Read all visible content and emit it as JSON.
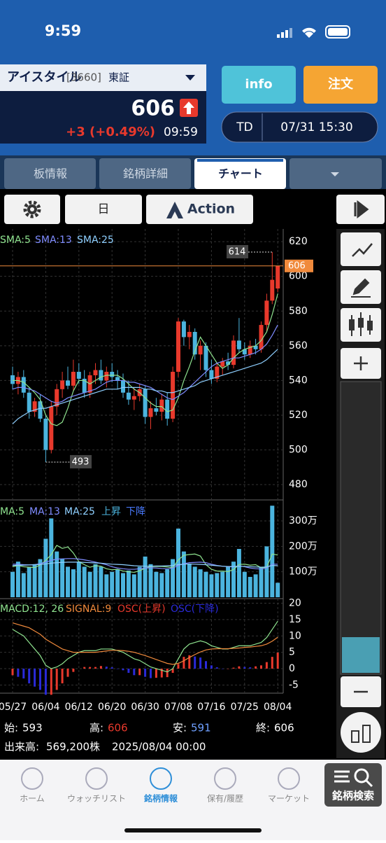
{
  "status_bar": {
    "time": "9:59"
  },
  "header": {
    "name": "アイスタイル",
    "code": "[3660]",
    "market": "東証",
    "change": "+3 (+0.49%)",
    "time": "09:59",
    "info": "info",
    "order": "注文",
    "td": "TD",
    "datetime": "07/31 15:30"
  },
  "tabs": [
    "板情報",
    "銘柄詳細",
    "チャート"
  ],
  "toolbar": {
    "period": "日",
    "action": "Action"
  },
  "legend": {
    "price": [
      "SMA:5",
      "SMA:13",
      "SMA:25"
    ],
    "volume": [
      "MA:5",
      "MA:13",
      "MA:25",
      "上昇",
      "下降"
    ],
    "macd": [
      "MACD:12, 26",
      "SIGNAL:9",
      "OSC(上昇)",
      "OSC(下降)"
    ]
  },
  "info": {
    "open": "始:",
    "high": "高:",
    "low": "安:",
    "close": "終:",
    "volume_prefix": "出来高:",
    "volume": "569,200",
    "volume_unit": "株",
    "datetime": "2025/08/04 00:00"
  },
  "nav": [
    "ホーム",
    "ウォッチリスト",
    "銘柄情報",
    "保有/履歴",
    "マーケット",
    "銘柄検索"
  ],
  "chart_data": {
    "type": "candlestick",
    "categories": [
      "05/27",
      null,
      null,
      null,
      null,
      null,
      "06/04",
      null,
      null,
      null,
      null,
      null,
      "06/12",
      null,
      null,
      null,
      null,
      null,
      "06/20",
      null,
      null,
      null,
      null,
      null,
      "06/30",
      null,
      null,
      null,
      null,
      null,
      "07/08",
      null,
      null,
      null,
      null,
      null,
      "07/16",
      null,
      null,
      null,
      null,
      null,
      "07/25",
      null,
      null,
      null,
      null,
      null,
      "08/04"
    ],
    "up_color": "#e8392c",
    "down_color": "#4bb4de",
    "ohlc": [
      [
        543,
        548,
        535,
        538
      ],
      [
        538,
        545,
        532,
        542
      ],
      [
        542,
        546,
        530,
        533
      ],
      [
        533,
        536,
        518,
        522
      ],
      [
        522,
        530,
        519,
        528
      ],
      [
        528,
        532,
        516,
        518
      ],
      [
        518,
        520,
        493,
        500
      ],
      [
        500,
        528,
        498,
        525
      ],
      [
        525,
        538,
        520,
        535
      ],
      [
        535,
        545,
        530,
        540
      ],
      [
        540,
        548,
        535,
        537
      ],
      [
        537,
        552,
        534,
        545
      ],
      [
        545,
        550,
        538,
        541
      ],
      [
        541,
        546,
        530,
        533
      ],
      [
        533,
        545,
        530,
        543
      ],
      [
        543,
        550,
        538,
        546
      ],
      [
        546,
        552,
        538,
        540
      ],
      [
        540,
        548,
        536,
        545
      ],
      [
        545,
        550,
        539,
        542
      ],
      [
        542,
        546,
        535,
        540
      ],
      [
        540,
        544,
        530,
        533
      ],
      [
        533,
        540,
        526,
        529
      ],
      [
        529,
        536,
        523,
        531
      ],
      [
        531,
        538,
        528,
        535
      ],
      [
        535,
        537,
        515,
        519
      ],
      [
        519,
        528,
        512,
        524
      ],
      [
        524,
        530,
        520,
        522
      ],
      [
        522,
        532,
        517,
        529
      ],
      [
        529,
        533,
        514,
        518
      ],
      [
        518,
        548,
        516,
        545
      ],
      [
        545,
        576,
        542,
        574
      ],
      [
        574,
        575,
        560,
        565
      ],
      [
        565,
        572,
        558,
        568
      ],
      [
        568,
        570,
        552,
        555
      ],
      [
        555,
        563,
        546,
        560
      ],
      [
        560,
        562,
        542,
        546
      ],
      [
        546,
        552,
        538,
        541
      ],
      [
        541,
        550,
        539,
        548
      ],
      [
        548,
        553,
        543,
        551
      ],
      [
        551,
        556,
        546,
        549
      ],
      [
        549,
        566,
        547,
        563
      ],
      [
        563,
        576,
        556,
        558
      ],
      [
        558,
        562,
        552,
        555
      ],
      [
        555,
        563,
        553,
        560
      ],
      [
        560,
        564,
        555,
        558
      ],
      [
        558,
        574,
        556,
        572
      ],
      [
        572,
        590,
        568,
        586
      ],
      [
        586,
        614,
        584,
        598
      ],
      [
        593,
        606,
        591,
        606
      ]
    ],
    "ylim": [
      472,
      627.3
    ],
    "yticks": [
      480,
      500,
      520,
      540,
      560,
      580,
      600,
      620
    ],
    "sma": [
      {
        "name": "SMA:5",
        "color": "#8fe38f",
        "values": [
          540,
          540,
          539,
          536,
          533,
          529,
          520,
          515,
          514,
          516,
          524,
          534,
          540,
          540,
          538,
          540,
          542,
          543,
          543,
          543,
          541,
          538,
          535,
          533,
          530,
          527,
          525,
          525,
          522,
          523,
          530,
          540,
          548,
          557,
          565,
          560,
          555,
          550,
          547,
          549,
          553,
          556,
          558,
          559,
          560,
          563,
          568,
          578,
          590
        ]
      },
      {
        "name": "SMA:13",
        "color": "#7f8cff",
        "values": [
          535,
          536,
          536,
          535,
          534,
          532,
          530,
          528,
          527,
          528,
          530,
          531,
          532,
          533,
          534,
          535,
          537,
          539,
          540,
          540,
          540,
          539,
          539,
          538,
          537,
          536,
          534,
          532,
          530,
          529,
          531,
          533,
          536,
          539,
          542,
          545,
          548,
          550,
          551,
          552,
          553,
          553,
          554,
          555,
          556,
          558,
          561,
          566,
          572
        ]
      },
      {
        "name": "SMA:25",
        "color": "#8ecfff",
        "values": [
          515,
          518,
          520,
          522,
          523,
          524,
          524,
          525,
          526,
          527,
          528,
          529,
          530,
          531,
          532,
          533,
          534,
          535,
          535,
          535,
          536,
          536,
          536,
          536,
          535,
          535,
          534,
          534,
          533,
          533,
          534,
          535,
          536,
          537,
          539,
          540,
          541,
          542,
          543,
          544,
          545,
          546,
          547,
          548,
          549,
          550,
          552,
          555,
          558
        ]
      }
    ],
    "volume": [
      1000000,
      1400000,
      950000,
      1200000,
      1300000,
      1500000,
      2300000,
      3100000,
      1800000,
      1500000,
      1200000,
      1100000,
      1400000,
      1200000,
      1000000,
      1300000,
      1200000,
      900000,
      1000000,
      1100000,
      950000,
      1050000,
      900000,
      1200000,
      1600000,
      1300000,
      1000000,
      950000,
      1100000,
      1500000,
      2700000,
      1800000,
      1300000,
      1200000,
      1100000,
      1000000,
      900000,
      950000,
      1000000,
      1200000,
      1400000,
      1900000,
      1000000,
      800000,
      900000,
      1200000,
      2000000,
      3600000,
      569200
    ],
    "volume_ylim": [
      0,
      3800000
    ],
    "volume_yticks": [
      {
        "value": 1000000,
        "label": "100万"
      },
      {
        "value": 2000000,
        "label": "200万"
      },
      {
        "value": 3000000,
        "label": "300万"
      }
    ],
    "volume_ma": [
      {
        "name": "MA:5",
        "color": "#8fe38f",
        "values": [
          1200000,
          1250000,
          1200000,
          1180000,
          1170000,
          1270000,
          1450000,
          1680000,
          2040000,
          1920000,
          1980000,
          1740000,
          1400000,
          1280000,
          1180000,
          1240000,
          1220000,
          1120000,
          1080000,
          1100000,
          1030000,
          1000000,
          980000,
          1040000,
          1140000,
          1210000,
          1210000,
          1210000,
          1190000,
          1170000,
          1470000,
          1650000,
          1680000,
          1700000,
          1620000,
          1280000,
          1100000,
          1030000,
          1030000,
          1010000,
          1090000,
          1290000,
          1300000,
          1260000,
          1280000,
          1160000,
          1180000,
          1700000,
          1660000
        ]
      },
      {
        "name": "MA:13",
        "color": "#7f8cff",
        "values": [
          1300000,
          1300000,
          1280000,
          1270000,
          1280000,
          1320000,
          1380000,
          1450000,
          1500000,
          1510000,
          1520000,
          1520000,
          1500000,
          1470000,
          1430000,
          1380000,
          1330000,
          1280000,
          1200000,
          1150000,
          1120000,
          1100000,
          1100000,
          1120000,
          1150000,
          1160000,
          1150000,
          1130000,
          1120000,
          1150000,
          1250000,
          1320000,
          1360000,
          1370000,
          1380000,
          1360000,
          1300000,
          1250000,
          1220000,
          1200000,
          1200000,
          1230000,
          1200000,
          1150000,
          1120000,
          1110000,
          1150000,
          1300000,
          1300000
        ]
      },
      {
        "name": "MA:25",
        "color": "#8ecfff",
        "values": [
          1250000,
          1260000,
          1260000,
          1270000,
          1280000,
          1290000,
          1310000,
          1340000,
          1360000,
          1370000,
          1380000,
          1380000,
          1380000,
          1370000,
          1360000,
          1350000,
          1340000,
          1320000,
          1300000,
          1290000,
          1280000,
          1260000,
          1240000,
          1230000,
          1220000,
          1220000,
          1230000,
          1230000,
          1240000,
          1250000,
          1280000,
          1300000,
          1310000,
          1300000,
          1290000,
          1280000,
          1260000,
          1240000,
          1220000,
          1210000,
          1210000,
          1220000,
          1210000,
          1200000,
          1190000,
          1180000,
          1190000,
          1250000,
          1240000
        ]
      }
    ],
    "macd_ylim": [
      -7.5,
      21.4
    ],
    "macd_yticks": [
      -5,
      0,
      5,
      10,
      15,
      20
    ],
    "macd": {
      "name": "MACD:12, 26",
      "color": "#8fe38f",
      "values": [
        12,
        11,
        10,
        8,
        6,
        4,
        1,
        0,
        0.5,
        1.5,
        3,
        4,
        5,
        5.5,
        5.5,
        5.5,
        6,
        6,
        6,
        5.5,
        5,
        4,
        3,
        2.5,
        1.5,
        0.5,
        0,
        -0.5,
        -1,
        0,
        3,
        6,
        7.5,
        8,
        8.5,
        8,
        7,
        6.5,
        6,
        6,
        6.5,
        7,
        7,
        7,
        7.5,
        8,
        9.5,
        12,
        14.5
      ]
    },
    "signal": {
      "name": "SIGNAL:9",
      "color": "#f08a3c",
      "values": [
        14,
        13.5,
        13,
        12.5,
        11.5,
        10.5,
        9,
        8,
        7,
        6,
        5.5,
        5,
        5,
        5,
        5,
        5,
        5.2,
        5.4,
        5.6,
        5.6,
        5.5,
        5.3,
        5,
        4.5,
        4,
        3.4,
        2.8,
        2.2,
        1.6,
        1.3,
        1.6,
        2.4,
        3.4,
        4.3,
        5.1,
        5.7,
        6,
        6.1,
        6.1,
        6.1,
        6.2,
        6.3,
        6.5,
        6.6,
        6.8,
        7,
        7.5,
        8.4,
        9.6
      ]
    },
    "osc": {
      "up_color": "#e8392c",
      "down_color": "#2a2ad8",
      "values": [
        -2,
        -2.5,
        -3,
        -4.5,
        -5.5,
        -6.5,
        -8,
        -8,
        -6.5,
        -4.5,
        -2.5,
        -1,
        0,
        0.5,
        0.5,
        0.5,
        0.8,
        0.6,
        0.4,
        -0.1,
        -0.5,
        -1.3,
        -2,
        -2,
        -2.5,
        -2.9,
        -2.8,
        -2.7,
        -2.6,
        -1.3,
        1.4,
        3.6,
        4.1,
        3.7,
        3.4,
        2.3,
        1,
        0.4,
        -0.1,
        -0.1,
        0.3,
        0.7,
        0.5,
        0.4,
        0.7,
        1,
        2,
        3.6,
        4.9
      ]
    },
    "grid": true
  }
}
